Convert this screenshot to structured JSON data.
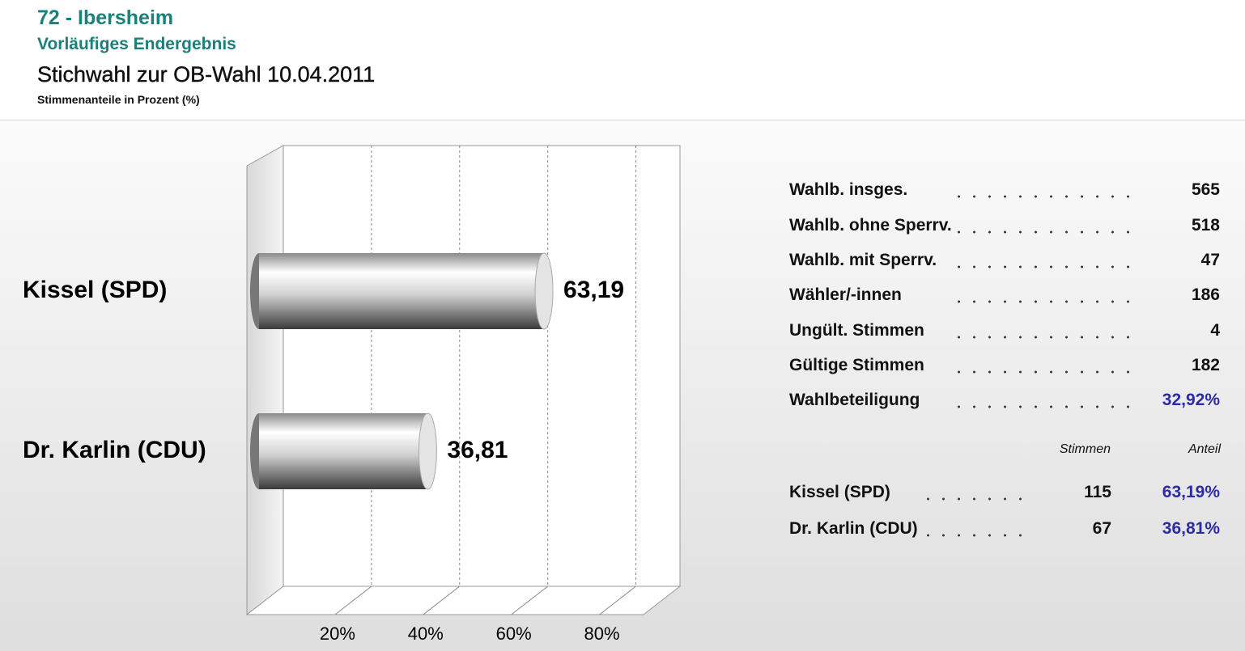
{
  "header": {
    "title": "72 - Ibersheim",
    "subtitle": "Vorläufiges Endergebnis",
    "election": "Stichwahl zur OB-Wahl 10.04.2011",
    "note": "Stimmenanteile in Prozent (%)"
  },
  "chart_data": {
    "type": "bar",
    "categories": [
      "Kissel (SPD)",
      "Dr. Karlin (CDU)"
    ],
    "values": [
      63.19,
      36.81
    ],
    "value_labels": [
      "63,19",
      "36,81"
    ],
    "xlim": [
      0,
      90
    ],
    "xticks": [
      {
        "value": 20,
        "label": "20%"
      },
      {
        "value": 40,
        "label": "40%"
      },
      {
        "value": 60,
        "label": "60%"
      },
      {
        "value": 80,
        "label": "80%"
      }
    ],
    "grid": true
  },
  "statistics": {
    "rows": [
      [
        "Wahlb. insges.",
        "565"
      ],
      [
        "Wahlb. ohne Sperrv.",
        "518"
      ],
      [
        "Wahlb. mit Sperrv.",
        "47"
      ],
      [
        "Wähler/-innen",
        "186"
      ],
      [
        "Ungült. Stimmen",
        "4"
      ],
      [
        "Gültige Stimmen",
        "182"
      ],
      [
        "Wahlbeteiligung",
        "32,92%"
      ]
    ]
  },
  "results": {
    "columns": [
      "Stimmen",
      "Anteil"
    ],
    "rows": [
      [
        "Kissel (SPD)",
        "115",
        "63,19%"
      ],
      [
        "Dr. Karlin (CDU)",
        "67",
        "36,81%"
      ]
    ]
  }
}
